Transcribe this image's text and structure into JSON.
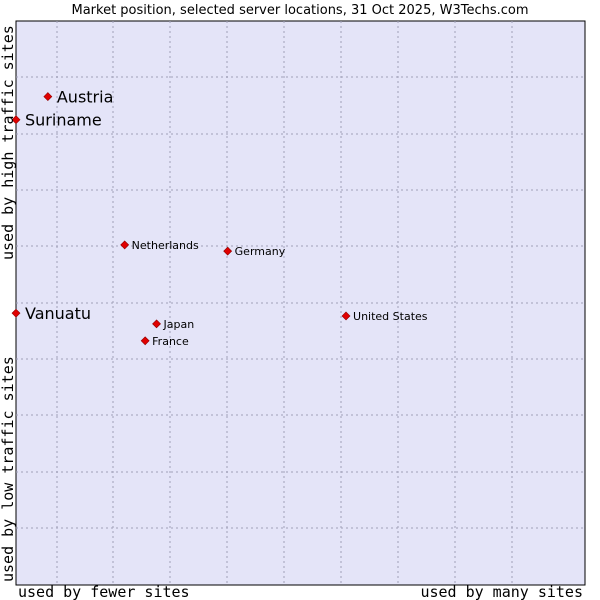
{
  "chart_data": {
    "type": "scatter",
    "title": "Market position, selected server locations, 31 Oct 2025, W3Techs.com",
    "xlabel_left": "used by fewer sites",
    "xlabel_right": "used by many sites",
    "ylabel_bottom": "used by low traffic sites",
    "ylabel_top": "used by high traffic sites",
    "xlim": [
      0,
      100
    ],
    "ylim": [
      0,
      100
    ],
    "grid": true,
    "colors": {
      "plot_background": "#e4e4f8",
      "grid": "#a0a0b8",
      "marker": "#e00000"
    },
    "points": [
      {
        "label": "Austria",
        "x": 5.6,
        "y": 86.6,
        "emphasis": true
      },
      {
        "label": "Suriname",
        "x": 0.0,
        "y": 82.5,
        "emphasis": true
      },
      {
        "label": "Netherlands",
        "x": 19.1,
        "y": 60.3,
        "emphasis": false
      },
      {
        "label": "Germany",
        "x": 37.2,
        "y": 59.2,
        "emphasis": false
      },
      {
        "label": "Vanuatu",
        "x": 0.0,
        "y": 48.2,
        "emphasis": true
      },
      {
        "label": "United States",
        "x": 58.0,
        "y": 47.7,
        "emphasis": false
      },
      {
        "label": "Japan",
        "x": 24.7,
        "y": 46.3,
        "emphasis": false
      },
      {
        "label": "France",
        "x": 22.7,
        "y": 43.3,
        "emphasis": false
      }
    ]
  }
}
